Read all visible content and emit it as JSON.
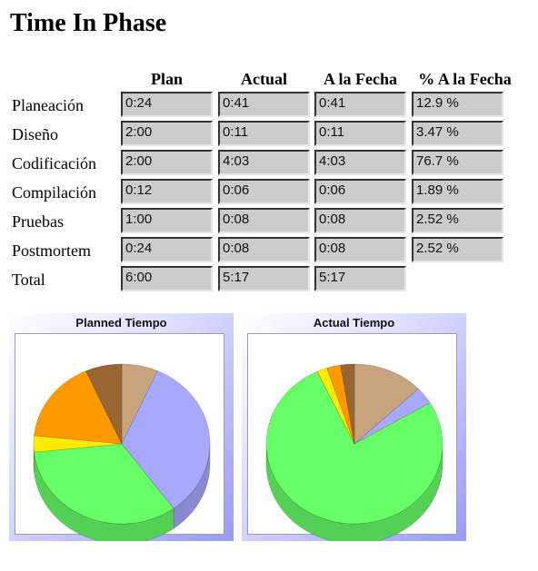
{
  "title": "Time In Phase",
  "headers": [
    "Plan",
    "Actual",
    "A la Fecha",
    "% A la Fecha"
  ],
  "rows": [
    {
      "phase": "Planeación",
      "plan": "0:24",
      "actual": "0:41",
      "to_date": "0:41",
      "pct": "12.9 %"
    },
    {
      "phase": "Diseño",
      "plan": "2:00",
      "actual": "0:11",
      "to_date": "0:11",
      "pct": "3.47 %"
    },
    {
      "phase": "Codificación",
      "plan": "2:00",
      "actual": "4:03",
      "to_date": "4:03",
      "pct": "76.7 %"
    },
    {
      "phase": "Compilación",
      "plan": "0:12",
      "actual": "0:06",
      "to_date": "0:06",
      "pct": "1.89 %"
    },
    {
      "phase": "Pruebas",
      "plan": "1:00",
      "actual": "0:08",
      "to_date": "0:08",
      "pct": "2.52 %"
    },
    {
      "phase": "Postmortem",
      "plan": "0:24",
      "actual": "0:08",
      "to_date": "0:08",
      "pct": "2.52 %"
    }
  ],
  "total": {
    "phase": "Total",
    "plan": "6:00",
    "actual": "5:17",
    "to_date": "5:17"
  },
  "colors": {
    "Planeación": "#c8a47e",
    "Diseño": "#a8a8ff",
    "Codificación": "#66ff66",
    "Compilación": "#ffea00",
    "Pruebas": "#ff9900",
    "Postmortem": "#996633"
  },
  "chart_data": [
    {
      "type": "pie",
      "title": "Planned Tiempo",
      "categories": [
        "Planeación",
        "Diseño",
        "Codificación",
        "Compilación",
        "Pruebas",
        "Postmortem"
      ],
      "values": [
        24,
        120,
        120,
        12,
        60,
        24
      ]
    },
    {
      "type": "pie",
      "title": "Actual Tiempo",
      "categories": [
        "Planeación",
        "Diseño",
        "Codificación",
        "Compilación",
        "Pruebas",
        "Postmortem"
      ],
      "values": [
        41,
        11,
        243,
        6,
        8,
        8
      ]
    }
  ]
}
